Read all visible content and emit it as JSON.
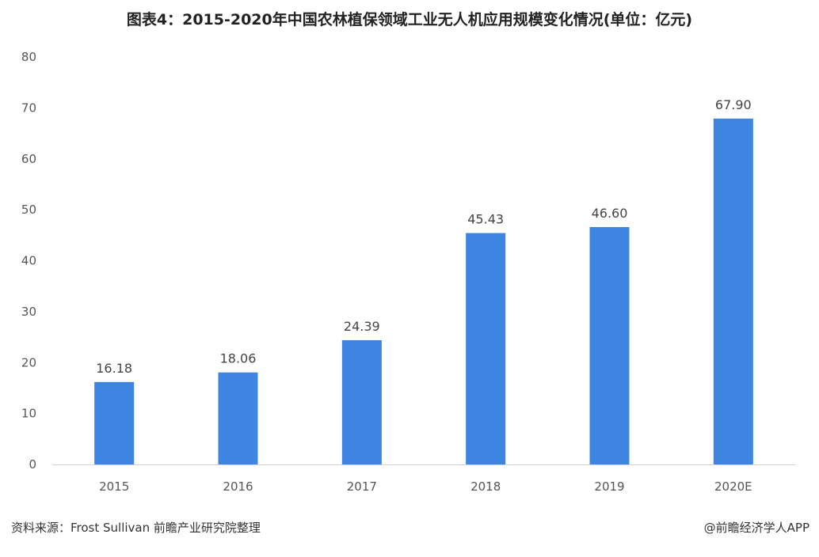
{
  "chart_data": {
    "type": "bar",
    "title": "图表4：2015-2020年中国农林植保领域工业无人机应用规模变化情况(单位：亿元)",
    "categories": [
      "2015",
      "2016",
      "2017",
      "2018",
      "2019",
      "2020E"
    ],
    "values": [
      16.18,
      18.06,
      24.39,
      45.43,
      46.6,
      67.9
    ],
    "value_labels": [
      "16.18",
      "18.06",
      "24.39",
      "45.43",
      "46.60",
      "67.90"
    ],
    "ylim": [
      0,
      80
    ],
    "yticks": [
      "0",
      "10",
      "20",
      "30",
      "40",
      "50",
      "60",
      "70",
      "80"
    ],
    "xlabel": "",
    "ylabel": "",
    "grid": false,
    "legend": "none",
    "bar_color": "#3d85e0"
  },
  "footer": {
    "source": "资料来源：Frost Sullivan 前瞻产业研究院整理",
    "credit": "@前瞻经济学人APP"
  }
}
